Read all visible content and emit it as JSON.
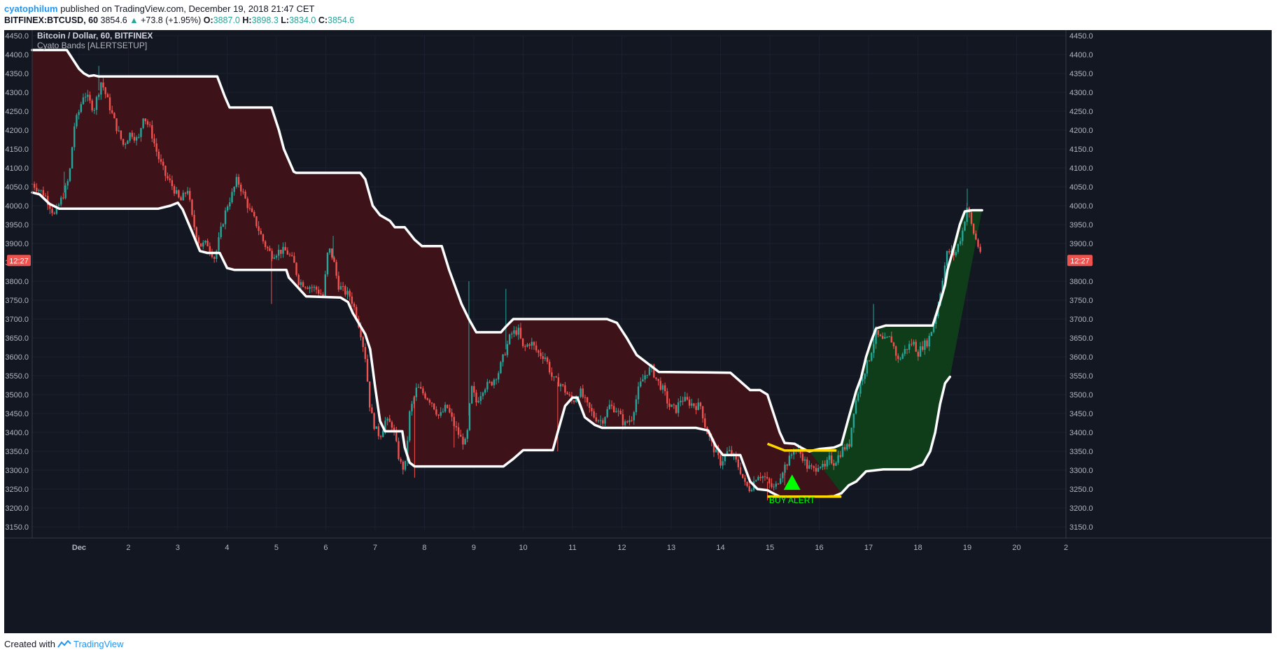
{
  "header": {
    "author": "cyatophilum",
    "published_text": "published on TradingView.com, December 19, 2018 21:47 CET",
    "symbol": "BITFINEX:BTCUSD, 60",
    "price": "3854.6",
    "up_arrow": "▲",
    "change": "+73.8 (+1.95%)",
    "o_label": "O:",
    "o": "3887.0",
    "h_label": "H:",
    "h": "3898.3",
    "l_label": "L:",
    "l": "3834.0",
    "c_label": "C:",
    "c": "3854.6"
  },
  "footer": {
    "created_with": "Created with",
    "brand": "TradingView",
    "brand_icon": "tradingview-logo-icon"
  },
  "colors": {
    "background": "#131722",
    "grid": "#1c2030",
    "axis_text": "#b2b5be",
    "bear_band": "#3d1219",
    "bull_band": "#0f3d1a",
    "band_line": "#ffffff",
    "alert_line": "#ffd700",
    "alert_marker": "#00ff00",
    "candle_up": "#26a69a",
    "candle_down": "#ef5350",
    "time_badge": "#ef5350"
  },
  "chart_data": {
    "type": "candlestick",
    "title": "Bitcoin / Dollar, 60, BITFINEX",
    "indicator": "Cyato Bands [ALERTSETUP]",
    "ylim": [
      3150,
      4450
    ],
    "xlim": [
      0.05,
      21
    ],
    "y_ticks": [
      "3150.0",
      "3200.0",
      "3250.0",
      "3300.0",
      "3350.0",
      "3400.0",
      "3450.0",
      "3500.0",
      "3550.0",
      "3600.0",
      "3650.0",
      "3700.0",
      "3750.0",
      "3800.0",
      "3850.0",
      "3900.0",
      "3950.0",
      "4000.0",
      "4050.0",
      "4100.0",
      "4150.0",
      "4200.0",
      "4250.0",
      "4300.0",
      "4350.0",
      "4400.0",
      "4450.0"
    ],
    "x_ticks": [
      {
        "x": 1,
        "label": "Dec"
      },
      {
        "x": 2,
        "label": "2"
      },
      {
        "x": 3,
        "label": "3"
      },
      {
        "x": 4,
        "label": "4"
      },
      {
        "x": 5,
        "label": "5"
      },
      {
        "x": 6,
        "label": "6"
      },
      {
        "x": 7,
        "label": "7"
      },
      {
        "x": 8,
        "label": "8"
      },
      {
        "x": 9,
        "label": "9"
      },
      {
        "x": 10,
        "label": "10"
      },
      {
        "x": 11,
        "label": "11"
      },
      {
        "x": 12,
        "label": "12"
      },
      {
        "x": 13,
        "label": "13"
      },
      {
        "x": 14,
        "label": "14"
      },
      {
        "x": 15,
        "label": "15"
      },
      {
        "x": 16,
        "label": "16"
      },
      {
        "x": 17,
        "label": "17"
      },
      {
        "x": 18,
        "label": "18"
      },
      {
        "x": 19,
        "label": "19"
      },
      {
        "x": 20,
        "label": "20"
      },
      {
        "x": 21,
        "label": "2"
      }
    ],
    "time_badge": "12:27",
    "time_badge_value": 3855,
    "bear_upper": [
      [
        0.05,
        4412
      ],
      [
        0.75,
        4412
      ],
      [
        1.0,
        4362
      ],
      [
        1.1,
        4350
      ],
      [
        1.2,
        4343
      ],
      [
        1.3,
        4345
      ],
      [
        1.4,
        4342
      ],
      [
        3.8,
        4342
      ],
      [
        3.95,
        4290
      ],
      [
        4.05,
        4260
      ],
      [
        4.9,
        4260
      ],
      [
        5.05,
        4200
      ],
      [
        5.15,
        4150
      ],
      [
        5.35,
        4090
      ],
      [
        5.4,
        4087
      ],
      [
        6.7,
        4087
      ],
      [
        6.8,
        4070
      ],
      [
        6.95,
        4000
      ],
      [
        7.1,
        3975
      ],
      [
        7.3,
        3960
      ],
      [
        7.4,
        3943
      ],
      [
        7.6,
        3943
      ],
      [
        7.8,
        3910
      ],
      [
        7.95,
        3893
      ],
      [
        8.35,
        3893
      ],
      [
        8.5,
        3830
      ],
      [
        8.75,
        3740
      ],
      [
        8.9,
        3700
      ],
      [
        9.05,
        3665
      ],
      [
        9.55,
        3665
      ],
      [
        9.65,
        3680
      ],
      [
        9.8,
        3700
      ],
      [
        11.7,
        3700
      ],
      [
        11.9,
        3690
      ],
      [
        12.1,
        3650
      ],
      [
        12.3,
        3605
      ],
      [
        12.45,
        3590
      ],
      [
        12.6,
        3575
      ],
      [
        12.75,
        3560
      ],
      [
        14.2,
        3558
      ],
      [
        14.4,
        3535
      ],
      [
        14.6,
        3512
      ],
      [
        14.8,
        3512
      ],
      [
        14.95,
        3500
      ],
      [
        15.05,
        3460
      ],
      [
        15.2,
        3400
      ],
      [
        15.3,
        3372
      ],
      [
        15.5,
        3370
      ],
      [
        15.6,
        3362
      ],
      [
        15.75,
        3352
      ],
      [
        15.8,
        3350
      ]
    ],
    "bear_lower": [
      [
        0.05,
        4035
      ],
      [
        0.2,
        4030
      ],
      [
        0.4,
        4005
      ],
      [
        0.6,
        3992
      ],
      [
        2.6,
        3992
      ],
      [
        2.85,
        4000
      ],
      [
        3.0,
        4008
      ],
      [
        3.1,
        3990
      ],
      [
        3.3,
        3928
      ],
      [
        3.45,
        3880
      ],
      [
        3.6,
        3875
      ],
      [
        3.85,
        3875
      ],
      [
        4.0,
        3835
      ],
      [
        4.15,
        3830
      ],
      [
        5.2,
        3830
      ],
      [
        5.25,
        3810
      ],
      [
        5.6,
        3760
      ],
      [
        6.3,
        3757
      ],
      [
        6.45,
        3745
      ],
      [
        6.55,
        3715
      ],
      [
        6.8,
        3660
      ],
      [
        6.9,
        3620
      ],
      [
        7.0,
        3520
      ],
      [
        7.1,
        3430
      ],
      [
        7.2,
        3403
      ],
      [
        7.55,
        3403
      ],
      [
        7.6,
        3360
      ],
      [
        7.7,
        3320
      ],
      [
        7.8,
        3310
      ],
      [
        8.1,
        3310
      ],
      [
        9.6,
        3310
      ],
      [
        9.8,
        3330
      ],
      [
        10.0,
        3353
      ],
      [
        10.6,
        3353
      ],
      [
        10.7,
        3400
      ],
      [
        10.85,
        3470
      ],
      [
        11.0,
        3492
      ],
      [
        11.1,
        3492
      ],
      [
        11.25,
        3440
      ],
      [
        11.45,
        3420
      ],
      [
        11.6,
        3412
      ],
      [
        13.5,
        3412
      ],
      [
        13.75,
        3405
      ],
      [
        13.9,
        3365
      ],
      [
        14.05,
        3340
      ],
      [
        14.4,
        3340
      ],
      [
        14.5,
        3305
      ],
      [
        14.6,
        3270
      ],
      [
        14.75,
        3250
      ],
      [
        14.95,
        3247
      ],
      [
        15.05,
        3240
      ],
      [
        15.2,
        3230
      ],
      [
        15.7,
        3230
      ],
      [
        16.15,
        3230
      ],
      [
        16.3,
        3231
      ],
      [
        16.45,
        3239
      ]
    ],
    "bull_upper": [
      [
        15.8,
        3350
      ],
      [
        16.0,
        3356
      ],
      [
        16.3,
        3360
      ],
      [
        16.45,
        3368
      ],
      [
        16.6,
        3440
      ],
      [
        16.75,
        3510
      ],
      [
        16.85,
        3545
      ],
      [
        16.95,
        3600
      ],
      [
        17.05,
        3640
      ],
      [
        17.15,
        3675
      ],
      [
        17.35,
        3683
      ],
      [
        18.3,
        3683
      ],
      [
        18.45,
        3745
      ],
      [
        18.55,
        3790
      ],
      [
        18.6,
        3830
      ],
      [
        18.75,
        3900
      ],
      [
        18.85,
        3950
      ],
      [
        18.95,
        3985
      ],
      [
        19.1,
        3988
      ],
      [
        19.3,
        3988
      ]
    ],
    "bull_lower": [
      [
        16.45,
        3239
      ],
      [
        16.6,
        3260
      ],
      [
        16.75,
        3270
      ],
      [
        16.95,
        3297
      ],
      [
        17.3,
        3302
      ],
      [
        17.85,
        3302
      ],
      [
        18.1,
        3315
      ],
      [
        18.25,
        3350
      ],
      [
        18.35,
        3400
      ],
      [
        18.45,
        3475
      ],
      [
        18.55,
        3530
      ],
      [
        18.65,
        3547
      ]
    ],
    "alert_upper": [
      [
        14.95,
        3370
      ],
      [
        15.3,
        3352
      ],
      [
        16.35,
        3352
      ]
    ],
    "alert_lower": [
      [
        14.95,
        3230
      ],
      [
        15.5,
        3230
      ],
      [
        16.45,
        3230
      ]
    ],
    "signals": [
      {
        "type": "buy",
        "x": 15.45,
        "y": 3248,
        "label": "BUY ALERT"
      }
    ],
    "price_path": [
      [
        0.05,
        4058
      ],
      [
        0.3,
        4030
      ],
      [
        0.5,
        3975
      ],
      [
        0.7,
        4035
      ],
      [
        0.8,
        4075
      ],
      [
        0.9,
        4210
      ],
      [
        1.0,
        4250
      ],
      [
        1.1,
        4300
      ],
      [
        1.3,
        4255
      ],
      [
        1.45,
        4330
      ],
      [
        1.6,
        4270
      ],
      [
        1.75,
        4210
      ],
      [
        1.9,
        4160
      ],
      [
        2.05,
        4195
      ],
      [
        2.2,
        4170
      ],
      [
        2.3,
        4240
      ],
      [
        2.45,
        4200
      ],
      [
        2.6,
        4130
      ],
      [
        2.75,
        4080
      ],
      [
        2.9,
        4050
      ],
      [
        3.05,
        4010
      ],
      [
        3.2,
        4045
      ],
      [
        3.3,
        3960
      ],
      [
        3.45,
        3895
      ],
      [
        3.6,
        3900
      ],
      [
        3.75,
        3860
      ],
      [
        3.9,
        3950
      ],
      [
        4.0,
        4000
      ],
      [
        4.1,
        4030
      ],
      [
        4.2,
        4070
      ],
      [
        4.3,
        4040
      ],
      [
        4.45,
        3990
      ],
      [
        4.6,
        3950
      ],
      [
        4.75,
        3900
      ],
      [
        4.9,
        3870
      ],
      [
        5.05,
        3880
      ],
      [
        5.2,
        3880
      ],
      [
        5.35,
        3850
      ],
      [
        5.45,
        3800
      ],
      [
        5.6,
        3790
      ],
      [
        5.8,
        3780
      ],
      [
        5.95,
        3760
      ],
      [
        6.05,
        3890
      ],
      [
        6.15,
        3860
      ],
      [
        6.25,
        3790
      ],
      [
        6.4,
        3770
      ],
      [
        6.5,
        3760
      ],
      [
        6.6,
        3720
      ],
      [
        6.7,
        3670
      ],
      [
        6.8,
        3600
      ],
      [
        6.9,
        3460
      ],
      [
        7.0,
        3410
      ],
      [
        7.1,
        3390
      ],
      [
        7.2,
        3430
      ],
      [
        7.35,
        3420
      ],
      [
        7.5,
        3320
      ],
      [
        7.6,
        3300
      ],
      [
        7.7,
        3450
      ],
      [
        7.85,
        3520
      ],
      [
        8.0,
        3500
      ],
      [
        8.15,
        3480
      ],
      [
        8.3,
        3440
      ],
      [
        8.45,
        3470
      ],
      [
        8.6,
        3420
      ],
      [
        8.75,
        3380
      ],
      [
        8.85,
        3370
      ],
      [
        8.95,
        3520
      ],
      [
        9.05,
        3480
      ],
      [
        9.2,
        3520
      ],
      [
        9.35,
        3530
      ],
      [
        9.5,
        3560
      ],
      [
        9.6,
        3600
      ],
      [
        9.75,
        3660
      ],
      [
        9.9,
        3670
      ],
      [
        10.0,
        3620
      ],
      [
        10.15,
        3640
      ],
      [
        10.3,
        3610
      ],
      [
        10.45,
        3600
      ],
      [
        10.6,
        3540
      ],
      [
        10.75,
        3530
      ],
      [
        10.9,
        3500
      ],
      [
        11.0,
        3480
      ],
      [
        11.15,
        3510
      ],
      [
        11.3,
        3470
      ],
      [
        11.45,
        3440
      ],
      [
        11.6,
        3430
      ],
      [
        11.75,
        3470
      ],
      [
        11.9,
        3460
      ],
      [
        12.05,
        3420
      ],
      [
        12.2,
        3440
      ],
      [
        12.35,
        3520
      ],
      [
        12.5,
        3560
      ],
      [
        12.6,
        3570
      ],
      [
        12.7,
        3540
      ],
      [
        12.85,
        3510
      ],
      [
        12.95,
        3470
      ],
      [
        13.1,
        3460
      ],
      [
        13.2,
        3490
      ],
      [
        13.35,
        3480
      ],
      [
        13.5,
        3470
      ],
      [
        13.6,
        3470
      ],
      [
        13.7,
        3410
      ],
      [
        13.85,
        3360
      ],
      [
        14.0,
        3320
      ],
      [
        14.15,
        3350
      ],
      [
        14.25,
        3340
      ],
      [
        14.4,
        3300
      ],
      [
        14.5,
        3260
      ],
      [
        14.6,
        3250
      ],
      [
        14.75,
        3290
      ],
      [
        14.9,
        3280
      ],
      [
        15.0,
        3260
      ],
      [
        15.1,
        3250
      ],
      [
        15.25,
        3300
      ],
      [
        15.4,
        3330
      ],
      [
        15.5,
        3360
      ],
      [
        15.65,
        3340
      ],
      [
        15.75,
        3310
      ],
      [
        15.9,
        3300
      ],
      [
        16.0,
        3320
      ],
      [
        16.1,
        3300
      ],
      [
        16.2,
        3330
      ],
      [
        16.3,
        3320
      ],
      [
        16.4,
        3340
      ],
      [
        16.5,
        3360
      ],
      [
        16.6,
        3360
      ],
      [
        16.7,
        3460
      ],
      [
        16.85,
        3540
      ],
      [
        17.0,
        3590
      ],
      [
        17.15,
        3660
      ],
      [
        17.3,
        3640
      ],
      [
        17.45,
        3650
      ],
      [
        17.6,
        3590
      ],
      [
        17.75,
        3620
      ],
      [
        17.9,
        3640
      ],
      [
        18.0,
        3610
      ],
      [
        18.1,
        3630
      ],
      [
        18.2,
        3640
      ],
      [
        18.3,
        3680
      ],
      [
        18.4,
        3730
      ],
      [
        18.5,
        3810
      ],
      [
        18.6,
        3880
      ],
      [
        18.75,
        3870
      ],
      [
        18.9,
        3930
      ],
      [
        19.0,
        4000
      ],
      [
        19.1,
        3940
      ],
      [
        19.2,
        3900
      ],
      [
        19.3,
        3870
      ]
    ],
    "spikes": [
      [
        1.4,
        4370
      ],
      [
        4.9,
        3740
      ],
      [
        6.15,
        3920
      ],
      [
        8.9,
        3800
      ],
      [
        9.65,
        3780
      ],
      [
        10.7,
        3350
      ],
      [
        17.1,
        3740
      ],
      [
        19.0,
        4045
      ],
      [
        7.8,
        3280
      ],
      [
        14.95,
        3220
      ],
      [
        15.3,
        3260
      ],
      [
        0.7,
        4090
      ],
      [
        8.6,
        3360
      ]
    ]
  }
}
